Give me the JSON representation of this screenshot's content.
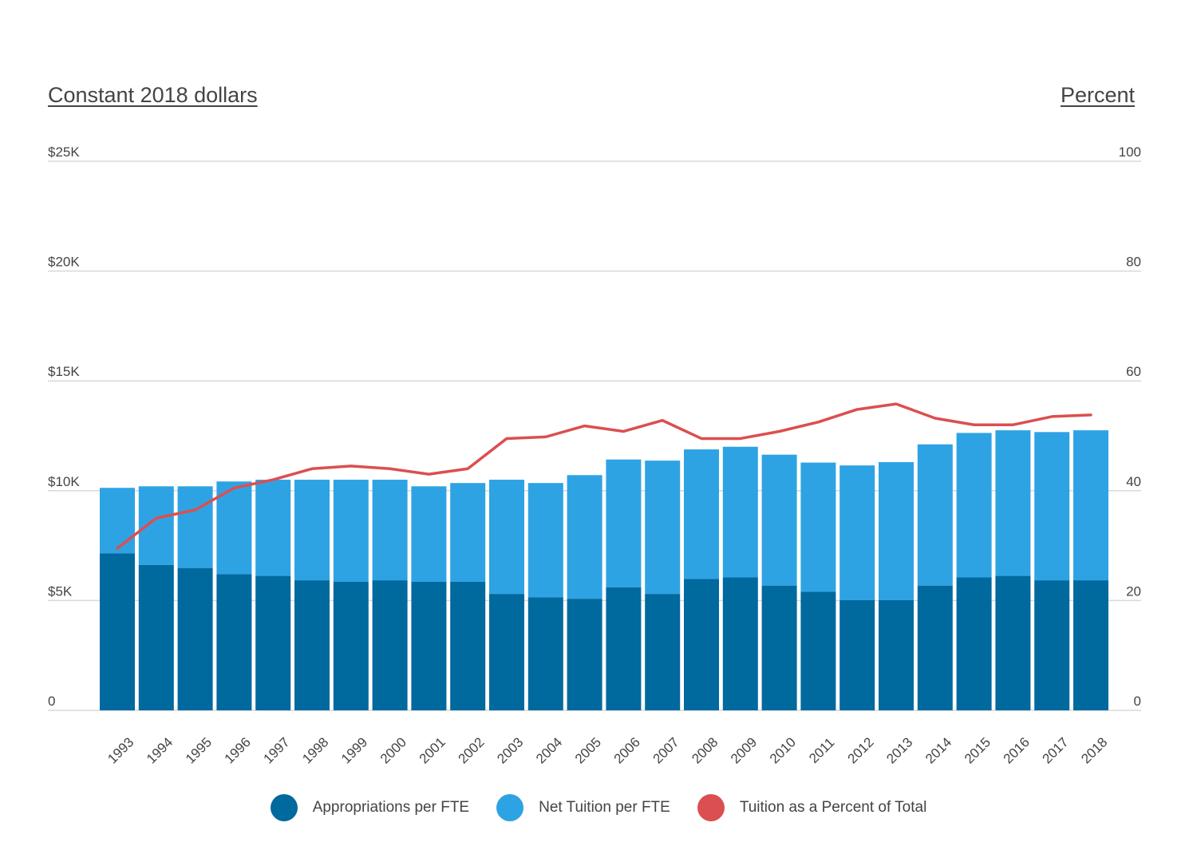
{
  "colors": {
    "appropriations": "#00699e",
    "tuition": "#2ea3e4",
    "line": "#db4f50",
    "grid": "#d9d9d9",
    "text": "#444444"
  },
  "chart_data": {
    "type": "bar",
    "stacked": true,
    "xlabel": "",
    "ylabel": "Constant 2018 dollars",
    "y2label": "Percent",
    "ylim": [
      0,
      25000
    ],
    "y2lim": [
      0,
      100
    ],
    "yticks": [
      {
        "value": 0,
        "label": "0"
      },
      {
        "value": 5000,
        "label": "$5K"
      },
      {
        "value": 10000,
        "label": "$10K"
      },
      {
        "value": 15000,
        "label": "$15K"
      },
      {
        "value": 20000,
        "label": "$20K"
      },
      {
        "value": 25000,
        "label": "$25K"
      }
    ],
    "y2ticks": [
      {
        "value": 0,
        "label": "0"
      },
      {
        "value": 20,
        "label": "20"
      },
      {
        "value": 40,
        "label": "40"
      },
      {
        "value": 60,
        "label": "60"
      },
      {
        "value": 80,
        "label": "80"
      },
      {
        "value": 100,
        "label": "100"
      }
    ],
    "grid": true,
    "legend_position": "bottom",
    "categories": [
      "1993",
      "1994",
      "1995",
      "1996",
      "1997",
      "1998",
      "1999",
      "2000",
      "2001",
      "2002",
      "2003",
      "2004",
      "2005",
      "2006",
      "2007",
      "2008",
      "2009",
      "2010",
      "2011",
      "2012",
      "2013",
      "2014",
      "2015",
      "2016",
      "2017",
      "2018"
    ],
    "series": [
      {
        "name": "Appropriations per FTE",
        "kind": "bar",
        "axis": "left",
        "color_key": "appropriations",
        "values": [
          7150,
          6620,
          6480,
          6200,
          6120,
          5920,
          5850,
          5920,
          5850,
          5850,
          5300,
          5150,
          5080,
          5600,
          5300,
          5980,
          6050,
          5680,
          5400,
          5020,
          5020,
          5680,
          6050,
          6120,
          5920,
          5920
        ]
      },
      {
        "name": "Net Tuition per FTE",
        "kind": "bar",
        "axis": "left",
        "color_key": "tuition",
        "values": [
          2980,
          3580,
          3720,
          4220,
          4380,
          4580,
          4650,
          4580,
          4350,
          4500,
          5200,
          5200,
          5630,
          5820,
          6070,
          5900,
          5950,
          5960,
          5880,
          6130,
          6280,
          6430,
          6580,
          6630,
          6750,
          6830
        ]
      },
      {
        "name": "Tuition as a Percent of Total",
        "kind": "line",
        "axis": "right",
        "color_key": "line",
        "values": [
          29.5,
          35.0,
          36.5,
          40.5,
          42.0,
          44.0,
          44.5,
          44.0,
          43.0,
          44.0,
          49.5,
          49.8,
          51.8,
          50.8,
          52.8,
          49.5,
          49.5,
          50.8,
          52.5,
          54.8,
          55.8,
          53.2,
          52.0,
          52.0,
          53.5,
          53.8
        ]
      }
    ]
  }
}
